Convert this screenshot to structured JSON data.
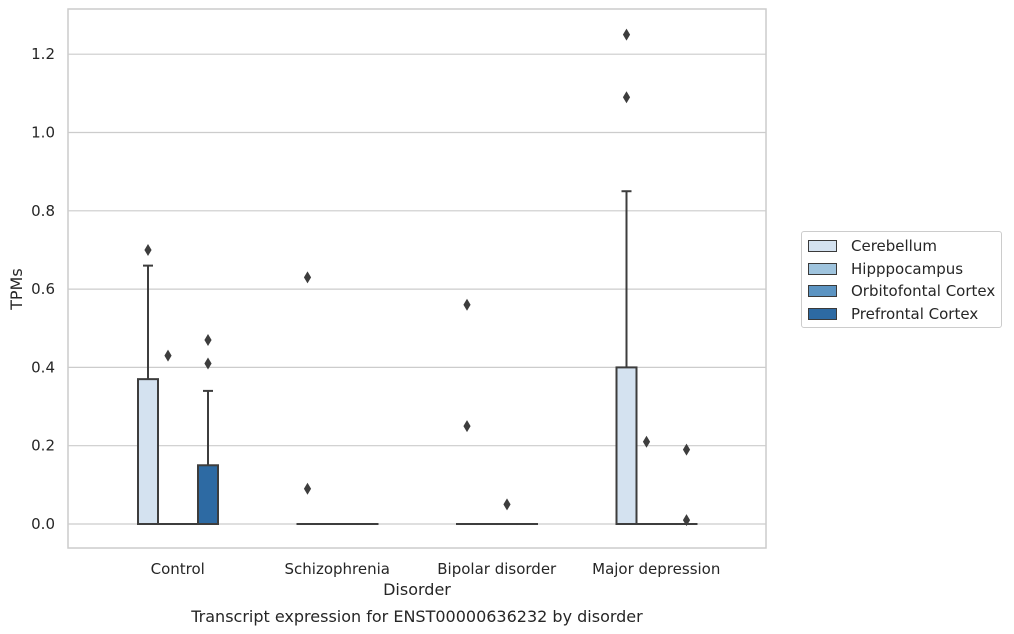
{
  "chart_data": {
    "type": "boxplot",
    "title": "",
    "caption": "Transcript expression for ENST00000636232 by disorder",
    "xlabel": "Disorder",
    "ylabel": "TPMs",
    "ylim": [
      -0.06,
      1.32
    ],
    "yticks": [
      "0.0",
      "0.2",
      "0.4",
      "0.6",
      "0.8",
      "1.0",
      "1.2"
    ],
    "grid": true,
    "legend_position": "right",
    "categories": [
      "Control",
      "Schizophrenia",
      "Bipolar disorder",
      "Major depression"
    ],
    "series": [
      {
        "name": "Cerebellum",
        "color": "#d4e2f0",
        "boxes": [
          {
            "q1": 0.0,
            "median": 0.0,
            "q3": 0.37,
            "whislo": 0.0,
            "whishi": 0.66,
            "fliers": [
              0.7
            ]
          },
          {
            "q1": 0.0,
            "median": 0.0,
            "q3": 0.0,
            "whislo": 0.0,
            "whishi": 0.0,
            "fliers": [
              0.09,
              0.63
            ]
          },
          {
            "q1": 0.0,
            "median": 0.0,
            "q3": 0.0,
            "whislo": 0.0,
            "whishi": 0.0,
            "fliers": [
              0.25,
              0.56
            ]
          },
          {
            "q1": 0.0,
            "median": 0.0,
            "q3": 0.4,
            "whislo": 0.0,
            "whishi": 0.85,
            "fliers": [
              1.09,
              1.25
            ]
          }
        ]
      },
      {
        "name": "Hipppocampus",
        "color": "#9fc4de",
        "boxes": [
          {
            "q1": 0.0,
            "median": 0.0,
            "q3": 0.0,
            "whislo": 0.0,
            "whishi": 0.0,
            "fliers": [
              0.43
            ]
          },
          {
            "q1": 0.0,
            "median": 0.0,
            "q3": 0.0,
            "whislo": 0.0,
            "whishi": 0.0,
            "fliers": []
          },
          {
            "q1": 0.0,
            "median": 0.0,
            "q3": 0.0,
            "whislo": 0.0,
            "whishi": 0.0,
            "fliers": []
          },
          {
            "q1": 0.0,
            "median": 0.0,
            "q3": 0.0,
            "whislo": 0.0,
            "whishi": 0.0,
            "fliers": [
              0.21
            ]
          }
        ]
      },
      {
        "name": "Orbitofontal Cortex",
        "color": "#5c94c2",
        "boxes": [
          {
            "q1": 0.0,
            "median": 0.0,
            "q3": 0.0,
            "whislo": 0.0,
            "whishi": 0.0,
            "fliers": []
          },
          {
            "q1": 0.0,
            "median": 0.0,
            "q3": 0.0,
            "whislo": 0.0,
            "whishi": 0.0,
            "fliers": []
          },
          {
            "q1": 0.0,
            "median": 0.0,
            "q3": 0.0,
            "whislo": 0.0,
            "whishi": 0.0,
            "fliers": [
              0.05
            ]
          },
          {
            "q1": 0.0,
            "median": 0.0,
            "q3": 0.0,
            "whislo": 0.0,
            "whishi": 0.0,
            "fliers": []
          }
        ]
      },
      {
        "name": "Prefrontal Cortex",
        "color": "#2d6aa3",
        "boxes": [
          {
            "q1": 0.0,
            "median": 0.0,
            "q3": 0.15,
            "whislo": 0.0,
            "whishi": 0.34,
            "fliers": [
              0.41,
              0.47
            ]
          },
          {
            "q1": 0.0,
            "median": 0.0,
            "q3": 0.0,
            "whislo": 0.0,
            "whishi": 0.0,
            "fliers": []
          },
          {
            "q1": 0.0,
            "median": 0.0,
            "q3": 0.0,
            "whislo": 0.0,
            "whishi": 0.0,
            "fliers": []
          },
          {
            "q1": 0.0,
            "median": 0.0,
            "q3": 0.0,
            "whislo": 0.0,
            "whishi": 0.0,
            "fliers": [
              0.01,
              0.19
            ]
          }
        ]
      }
    ]
  }
}
